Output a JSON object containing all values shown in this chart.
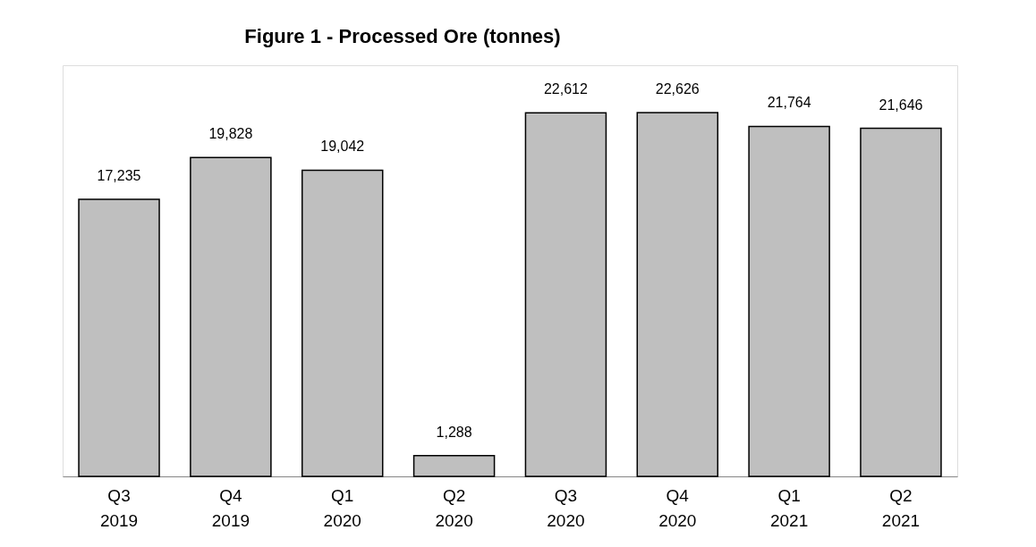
{
  "chart_data": {
    "type": "bar",
    "title": "Figure 1 - Processed Ore (tonnes)",
    "categories": [
      "Q3\n2019",
      "Q4\n2019",
      "Q1\n2020",
      "Q2\n2020",
      "Q3\n2020",
      "Q4\n2020",
      "Q1\n2021",
      "Q2\n2021"
    ],
    "values": [
      17235,
      19828,
      19042,
      1288,
      22612,
      22626,
      21764,
      21646
    ],
    "value_labels": [
      "17,235",
      "19,828",
      "19,042",
      "1,288",
      "22,612",
      "22,626",
      "21,764",
      "21,646"
    ],
    "color": "#bfbfbf",
    "grid": false
  }
}
